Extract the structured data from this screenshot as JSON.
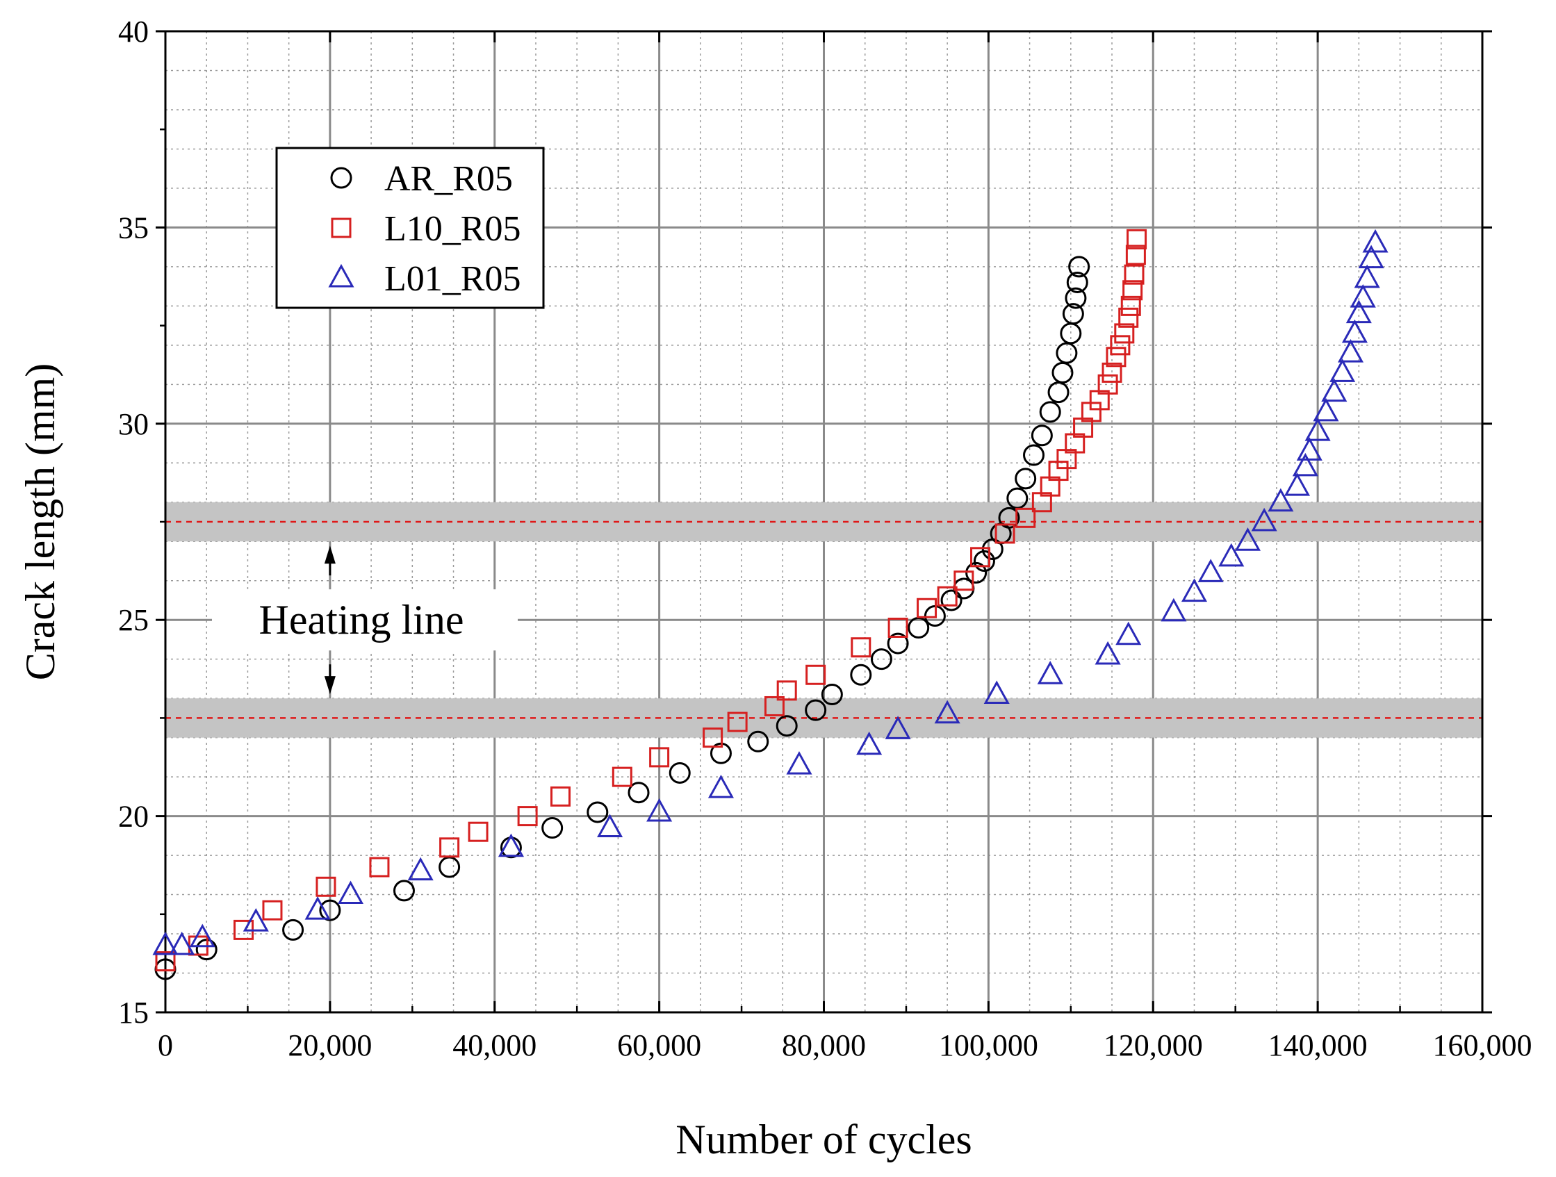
{
  "chart_data": {
    "type": "scatter",
    "title": "",
    "xlabel": "Number of cycles",
    "ylabel": "Crack length (mm)",
    "xlim": [
      0,
      160000
    ],
    "ylim": [
      15,
      40
    ],
    "x_ticks": [
      0,
      20000,
      40000,
      60000,
      80000,
      100000,
      120000,
      140000,
      160000
    ],
    "x_tick_labels": [
      "0",
      "20,000",
      "40,000",
      "60,000",
      "80,000",
      "100,000",
      "120,000",
      "140,000",
      "160,000"
    ],
    "y_ticks": [
      15,
      20,
      25,
      30,
      35,
      40
    ],
    "y_tick_labels": [
      "15",
      "20",
      "25",
      "30",
      "35",
      "40"
    ],
    "grid": true,
    "legend_position": "top-left",
    "series": [
      {
        "name": "AR_R05",
        "marker": "circle",
        "color": "#000000",
        "points": [
          [
            0,
            16.1
          ],
          [
            5000,
            16.6
          ],
          [
            15500,
            17.1
          ],
          [
            20000,
            17.6
          ],
          [
            29000,
            18.1
          ],
          [
            34500,
            18.7
          ],
          [
            42000,
            19.2
          ],
          [
            47000,
            19.7
          ],
          [
            52500,
            20.1
          ],
          [
            57500,
            20.6
          ],
          [
            62500,
            21.1
          ],
          [
            67500,
            21.6
          ],
          [
            72000,
            21.9
          ],
          [
            75500,
            22.3
          ],
          [
            79000,
            22.7
          ],
          [
            81000,
            23.1
          ],
          [
            84500,
            23.6
          ],
          [
            87000,
            24.0
          ],
          [
            89000,
            24.4
          ],
          [
            91500,
            24.8
          ],
          [
            93500,
            25.1
          ],
          [
            95500,
            25.5
          ],
          [
            97000,
            25.8
          ],
          [
            98500,
            26.2
          ],
          [
            99500,
            26.5
          ],
          [
            100500,
            26.8
          ],
          [
            101500,
            27.2
          ],
          [
            102500,
            27.6
          ],
          [
            103500,
            28.1
          ],
          [
            104500,
            28.6
          ],
          [
            105500,
            29.2
          ],
          [
            106500,
            29.7
          ],
          [
            107500,
            30.3
          ],
          [
            108500,
            30.8
          ],
          [
            109000,
            31.3
          ],
          [
            109500,
            31.8
          ],
          [
            110000,
            32.3
          ],
          [
            110300,
            32.8
          ],
          [
            110600,
            33.2
          ],
          [
            110800,
            33.6
          ],
          [
            111000,
            34.0
          ]
        ]
      },
      {
        "name": "L10_R05",
        "marker": "square",
        "color": "#d62020",
        "points": [
          [
            0,
            16.3
          ],
          [
            4000,
            16.7
          ],
          [
            9500,
            17.1
          ],
          [
            13000,
            17.6
          ],
          [
            19500,
            18.2
          ],
          [
            26000,
            18.7
          ],
          [
            34500,
            19.2
          ],
          [
            38000,
            19.6
          ],
          [
            44000,
            20.0
          ],
          [
            48000,
            20.5
          ],
          [
            55500,
            21.0
          ],
          [
            60000,
            21.5
          ],
          [
            66500,
            22.0
          ],
          [
            69500,
            22.4
          ],
          [
            74000,
            22.8
          ],
          [
            75500,
            23.2
          ],
          [
            79000,
            23.6
          ],
          [
            84500,
            24.3
          ],
          [
            89000,
            24.8
          ],
          [
            92500,
            25.3
          ],
          [
            95000,
            25.6
          ],
          [
            97000,
            26.0
          ],
          [
            99000,
            26.6
          ],
          [
            102000,
            27.2
          ],
          [
            104500,
            27.6
          ],
          [
            106500,
            28.0
          ],
          [
            107500,
            28.4
          ],
          [
            108500,
            28.8
          ],
          [
            109500,
            29.1
          ],
          [
            110500,
            29.5
          ],
          [
            111500,
            29.9
          ],
          [
            112500,
            30.3
          ],
          [
            113500,
            30.6
          ],
          [
            114500,
            31.0
          ],
          [
            115000,
            31.3
          ],
          [
            115500,
            31.7
          ],
          [
            116000,
            32.0
          ],
          [
            116500,
            32.3
          ],
          [
            117000,
            32.7
          ],
          [
            117300,
            33.0
          ],
          [
            117500,
            33.4
          ],
          [
            117700,
            33.8
          ],
          [
            117900,
            34.3
          ],
          [
            118000,
            34.7
          ]
        ]
      },
      {
        "name": "L01_R05",
        "marker": "triangle",
        "color": "#2a2ab8",
        "points": [
          [
            0,
            16.7
          ],
          [
            2000,
            16.7
          ],
          [
            4500,
            16.9
          ],
          [
            11000,
            17.3
          ],
          [
            18500,
            17.6
          ],
          [
            22500,
            18.0
          ],
          [
            31000,
            18.6
          ],
          [
            42000,
            19.2
          ],
          [
            54000,
            19.7
          ],
          [
            60000,
            20.1
          ],
          [
            67500,
            20.7
          ],
          [
            77000,
            21.3
          ],
          [
            85500,
            21.8
          ],
          [
            89000,
            22.2
          ],
          [
            95000,
            22.6
          ],
          [
            101000,
            23.1
          ],
          [
            107500,
            23.6
          ],
          [
            114500,
            24.1
          ],
          [
            117000,
            24.6
          ],
          [
            122500,
            25.2
          ],
          [
            125000,
            25.7
          ],
          [
            127000,
            26.2
          ],
          [
            129500,
            26.6
          ],
          [
            131500,
            27.0
          ],
          [
            133500,
            27.5
          ],
          [
            135500,
            28.0
          ],
          [
            137500,
            28.4
          ],
          [
            138500,
            28.9
          ],
          [
            139000,
            29.3
          ],
          [
            140000,
            29.8
          ],
          [
            141000,
            30.3
          ],
          [
            142000,
            30.8
          ],
          [
            143000,
            31.3
          ],
          [
            144000,
            31.8
          ],
          [
            144500,
            32.3
          ],
          [
            145000,
            32.8
          ],
          [
            145500,
            33.2
          ],
          [
            146000,
            33.7
          ],
          [
            146500,
            34.2
          ],
          [
            147000,
            34.6
          ]
        ]
      }
    ],
    "heating_lines": [
      {
        "y": 27.5,
        "band": [
          27.0,
          28.0
        ]
      },
      {
        "y": 22.5,
        "band": [
          22.0,
          23.0
        ]
      }
    ],
    "annotations": [
      {
        "text": "Heating line",
        "x": 20000,
        "y": 25
      }
    ]
  }
}
